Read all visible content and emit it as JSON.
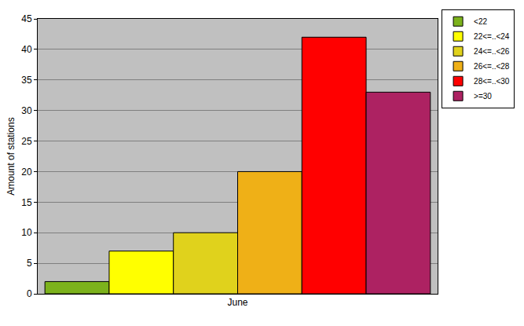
{
  "chart_data": {
    "type": "bar",
    "categories": [
      "June"
    ],
    "series": [
      {
        "name": "<22",
        "color": "#7cb21c",
        "values": [
          2
        ]
      },
      {
        "name": "22<=..<24",
        "color": "#ffff00",
        "values": [
          7
        ]
      },
      {
        "name": "24<=..<26",
        "color": "#e0d21c",
        "values": [
          10
        ]
      },
      {
        "name": "26<=..<28",
        "color": "#efb017",
        "values": [
          20
        ]
      },
      {
        "name": "28<=..<30",
        "color": "#ff0000",
        "values": [
          42
        ]
      },
      {
        "name": ">=30",
        "color": "#ad2262",
        "values": [
          33
        ]
      }
    ],
    "y_label": "Amount of stations",
    "ylim": [
      0,
      45
    ],
    "yticks": [
      0,
      5,
      10,
      15,
      20,
      25,
      30,
      35,
      40,
      45
    ],
    "grid": true,
    "legend": "upper right"
  }
}
